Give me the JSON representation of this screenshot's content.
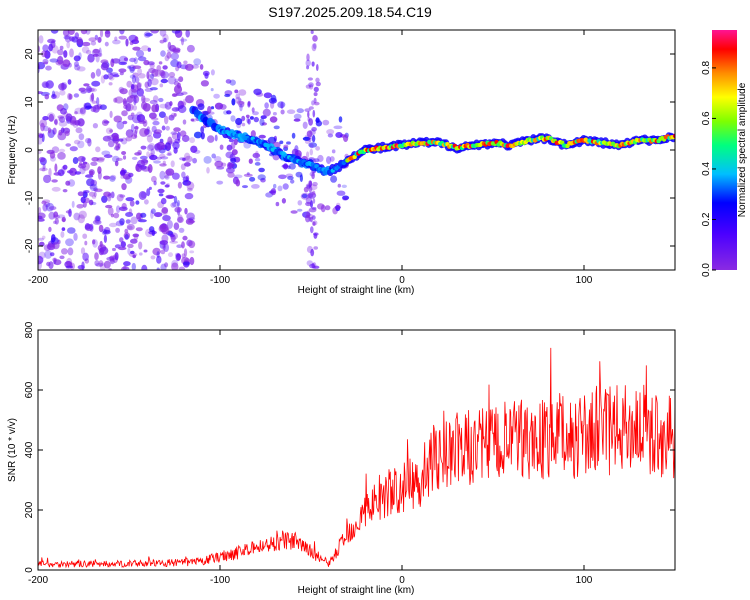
{
  "title": "S197.2025.209.18.54.C19",
  "chart_data": [
    {
      "type": "heatmap",
      "xlabel": "Height of straight line (km)",
      "ylabel": "Frequency (Hz)",
      "xlim": [
        -200,
        150
      ],
      "ylim": [
        -25,
        25
      ],
      "x_ticks": [
        "-200",
        "-100",
        "0",
        "100"
      ],
      "y_ticks": [
        "-20",
        "-10",
        "0",
        "10",
        "20"
      ],
      "colorbar": {
        "label": "Normalized spectral amplitude",
        "range": [
          0,
          0.95
        ],
        "ticks": [
          "0.0",
          "0.2",
          "0.4",
          "0.6",
          "0.8"
        ]
      },
      "ridge": {
        "x": [
          -120,
          -110,
          -100,
          -90,
          -80,
          -70,
          -60,
          -50,
          -45,
          -40,
          -35,
          -30,
          -25,
          -20,
          -10,
          0,
          10,
          20,
          30,
          40,
          50,
          60,
          70,
          80,
          90,
          100,
          110,
          120,
          130,
          140,
          150
        ],
        "y": [
          10,
          7,
          4,
          3,
          2,
          0,
          -2,
          -3,
          -4,
          -4.5,
          -3.5,
          -2,
          -1,
          0,
          0.5,
          1,
          1.5,
          1.5,
          0.5,
          1,
          1.5,
          1,
          2,
          2.5,
          1,
          2,
          1.5,
          1,
          2,
          2,
          3
        ]
      },
      "noise_region_x": [
        -200,
        -115
      ]
    },
    {
      "type": "line",
      "xlabel": "Height of straight line (km)",
      "ylabel": "SNR (10 * v/v)",
      "xlim": [
        -200,
        150
      ],
      "ylim": [
        0,
        800
      ],
      "x_ticks": [
        "-200",
        "-100",
        "0",
        "100"
      ],
      "y_ticks": [
        "0",
        "200",
        "400",
        "600",
        "800"
      ],
      "line_color": "#ff0000",
      "series": [
        {
          "x": [
            -200,
            -180,
            -160,
            -140,
            -120,
            -110,
            -100,
            -90,
            -80,
            -70,
            -60,
            -50,
            -40,
            -30,
            -20,
            -10,
            0,
            10,
            20,
            30,
            40,
            50,
            60,
            70,
            80,
            90,
            100,
            110,
            120,
            130,
            140,
            150
          ],
          "y": [
            20,
            20,
            20,
            22,
            25,
            28,
            45,
            60,
            75,
            90,
            100,
            60,
            20,
            120,
            200,
            250,
            270,
            300,
            380,
            400,
            410,
            420,
            430,
            430,
            440,
            440,
            450,
            460,
            470,
            480,
            450,
            450
          ]
        }
      ]
    }
  ]
}
